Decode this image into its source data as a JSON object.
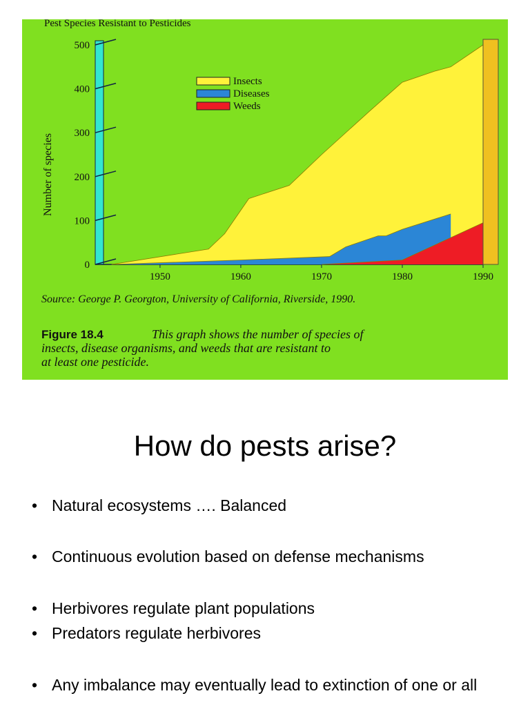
{
  "chart_data": {
    "type": "area",
    "title": "Pest Species Resistant to Pesticides",
    "y_label": "Number of species",
    "xlim": [
      1943,
      1990
    ],
    "xticks": [
      1950,
      1960,
      1970,
      1980,
      1990
    ],
    "ylim": [
      0,
      500
    ],
    "yticks": [
      0,
      100,
      200,
      300,
      400,
      500
    ],
    "series": [
      {
        "name": "Insects",
        "color": "#fff23a",
        "x": [
          1944,
          1956,
          1958,
          1961,
          1966,
          1970,
          1976,
          1980,
          1984,
          1986,
          1990
        ],
        "values": [
          0,
          35,
          70,
          150,
          180,
          250,
          350,
          415,
          440,
          450,
          500
        ]
      },
      {
        "name": "Diseases",
        "color": "#2b86d6",
        "x": [
          1944,
          1960,
          1971,
          1973,
          1977,
          1978,
          1980,
          1986
        ],
        "values": [
          0,
          10,
          18,
          40,
          65,
          65,
          80,
          115
        ]
      },
      {
        "name": "Weeds",
        "color": "#ee1c25",
        "x": [
          1970,
          1980,
          1990
        ],
        "values": [
          0,
          10,
          95
        ]
      }
    ],
    "source": "Source: George P. Georgton, University of California, Riverside, 1990.",
    "figure_label": "Figure 18.4",
    "caption_lines": [
      "This graph shows the number of species of",
      "insects, disease organisms, and weeds that are resistant to",
      "at least one pesticide."
    ]
  },
  "slide": {
    "title": "How do pests arise?",
    "bullets": [
      "Natural ecosystems …. Balanced",
      "Continuous evolution based on defense mechanisms",
      "Herbivores regulate plant populations",
      "Predators regulate herbivores",
      "Any imbalance may eventually lead to extinction of one or all"
    ]
  }
}
